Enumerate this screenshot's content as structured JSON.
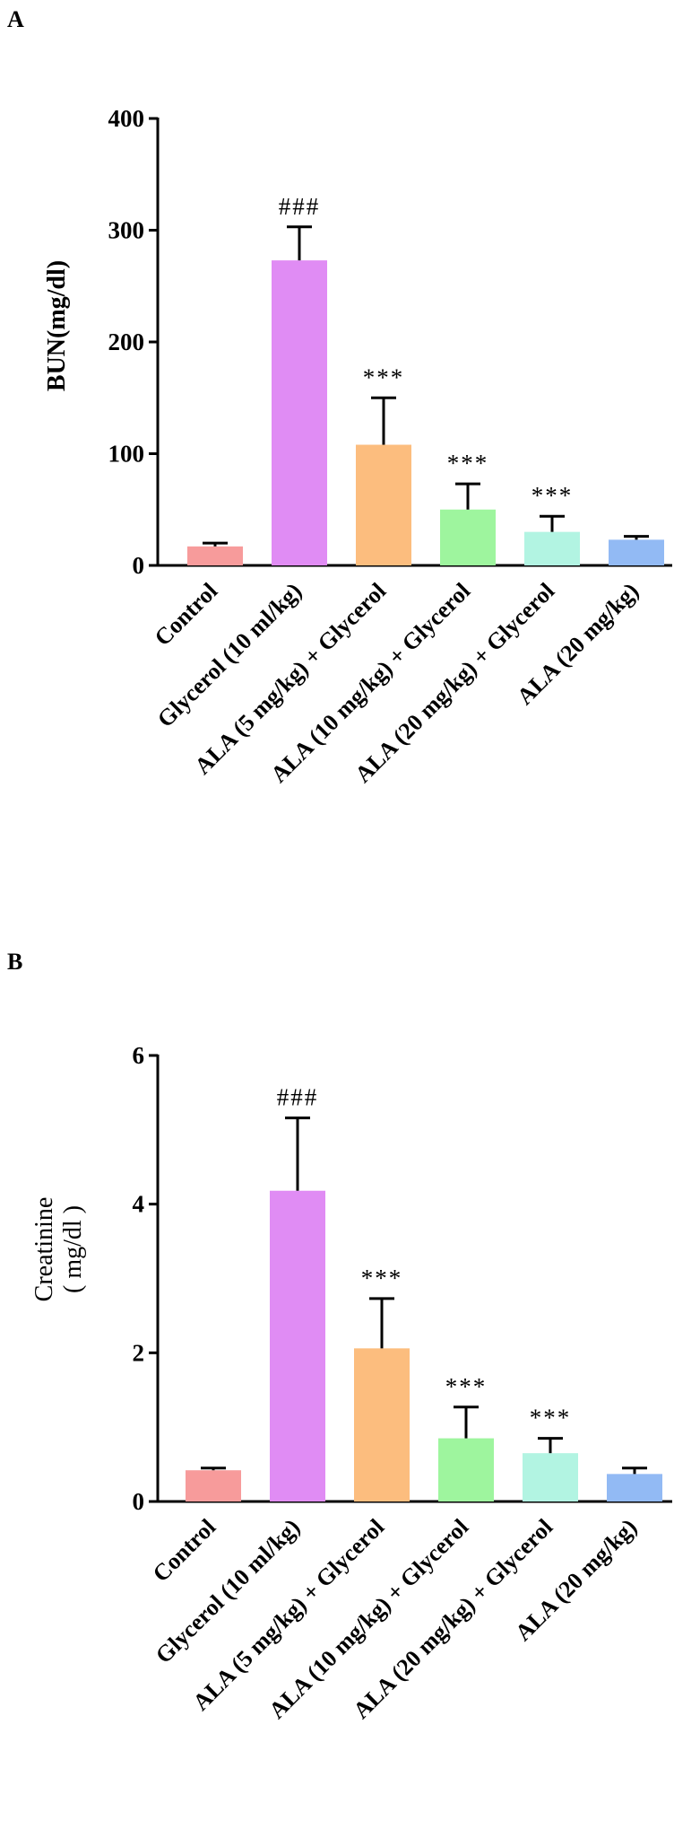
{
  "chart_data": [
    {
      "panel": "A",
      "type": "bar",
      "ylabel": "BUN(mg/dl)",
      "ylim": [
        0,
        400
      ],
      "yticks": [
        0,
        100,
        200,
        300,
        400
      ],
      "categories": [
        "Control",
        "Glycerol (10 ml/kg)",
        "ALA  (5 mg/kg) + Glycerol",
        "ALA  (10 mg/kg) + Glycerol",
        "ALA  (20 mg/kg) + Glycerol",
        "ALA  (20 mg/kg)"
      ],
      "values": [
        17,
        273,
        108,
        50,
        30,
        23
      ],
      "errors": [
        3,
        30,
        42,
        23,
        14,
        3
      ],
      "significance": [
        "",
        "###",
        "***",
        "***",
        "***",
        ""
      ],
      "colors": [
        "#f79b9b",
        "#e08cf4",
        "#fcbd7e",
        "#9ef59e",
        "#b2f4e2",
        "#92baf4"
      ]
    },
    {
      "panel": "B",
      "type": "bar",
      "ylabel_lines": [
        "Creatinine",
        "( mg/dl )"
      ],
      "ylim": [
        0,
        6
      ],
      "yticks": [
        0,
        2,
        4,
        6
      ],
      "categories": [
        "Control",
        "Glycerol (10 ml/kg)",
        "ALA (5 mg/kg) + Glycerol",
        "ALA (10 mg/kg) + Glycerol",
        "ALA (20 mg/kg) + Glycerol",
        "ALA (20 mg/kg)"
      ],
      "values": [
        0.42,
        4.18,
        2.06,
        0.85,
        0.65,
        0.37
      ],
      "errors": [
        0.03,
        0.98,
        0.67,
        0.42,
        0.2,
        0.08
      ],
      "significance": [
        "",
        "###",
        "***",
        "***",
        "***",
        ""
      ],
      "colors": [
        "#f79b9b",
        "#e08cf4",
        "#fcbd7e",
        "#9ef59e",
        "#b2f4e2",
        "#92baf4"
      ]
    }
  ]
}
